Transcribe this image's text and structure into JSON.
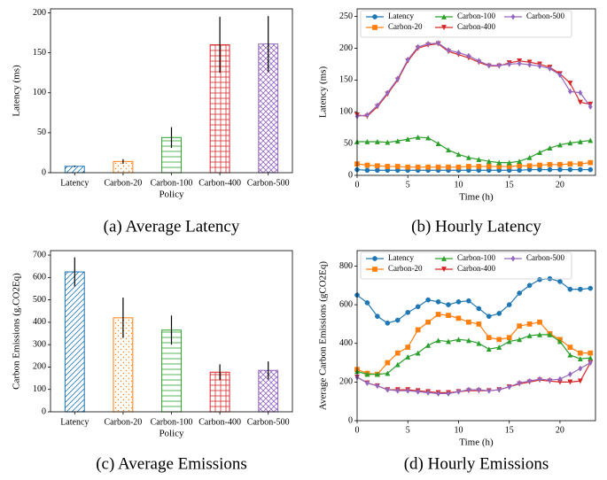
{
  "chart_data": [
    {
      "type": "bar",
      "caption": "(a) Average Latency",
      "xlabel": "Policy",
      "ylabel": "Latency (ms)",
      "categories": [
        "Latency",
        "Carbon-20",
        "Carbon-100",
        "Carbon-400",
        "Carbon-500"
      ],
      "values": [
        8,
        14,
        44,
        160,
        161
      ],
      "errors": [
        1,
        3,
        13,
        35,
        35
      ],
      "colors": [
        "#1f77b4",
        "#ff7f0e",
        "#2ca02c",
        "#d62728",
        "#9467bd"
      ],
      "hatches": [
        "/",
        ".",
        "-",
        "+",
        "x"
      ],
      "ylim": [
        0,
        205
      ],
      "yticks": [
        0,
        50,
        100,
        150,
        200
      ]
    },
    {
      "type": "line",
      "caption": "(b) Hourly Latency",
      "xlabel": "Time (h)",
      "ylabel": "Latency (ms)",
      "x": [
        0,
        1,
        2,
        3,
        4,
        5,
        6,
        7,
        8,
        9,
        10,
        11,
        12,
        13,
        14,
        15,
        16,
        17,
        18,
        19,
        20,
        21,
        22,
        23
      ],
      "series": [
        {
          "name": "Latency",
          "color": "#1f77b4",
          "marker": "o",
          "values": [
            9,
            8,
            8,
            8,
            8,
            8,
            8,
            8,
            8,
            8,
            8,
            8,
            8,
            8,
            8,
            8,
            8,
            9,
            9,
            9,
            9,
            9,
            9,
            9
          ]
        },
        {
          "name": "Carbon-20",
          "color": "#ff7f0e",
          "marker": "s",
          "values": [
            18,
            16,
            15,
            14,
            14,
            13,
            13,
            13,
            13,
            13,
            13,
            14,
            14,
            14,
            14,
            14,
            15,
            15,
            16,
            17,
            17,
            18,
            18,
            20
          ]
        },
        {
          "name": "Carbon-100",
          "color": "#2ca02c",
          "marker": "^",
          "values": [
            53,
            53,
            53,
            52,
            54,
            57,
            60,
            59,
            50,
            40,
            33,
            28,
            25,
            22,
            20,
            20,
            22,
            28,
            36,
            43,
            48,
            51,
            53,
            55
          ]
        },
        {
          "name": "Carbon-400",
          "color": "#d62728",
          "marker": "v",
          "values": [
            95,
            93,
            108,
            128,
            150,
            180,
            200,
            205,
            207,
            195,
            190,
            185,
            178,
            172,
            172,
            177,
            180,
            178,
            175,
            170,
            160,
            145,
            115,
            112
          ]
        },
        {
          "name": "Carbon-500",
          "color": "#9467bd",
          "marker": "d",
          "values": [
            93,
            95,
            110,
            130,
            152,
            182,
            202,
            207,
            208,
            197,
            193,
            188,
            180,
            173,
            173,
            175,
            176,
            174,
            172,
            168,
            158,
            132,
            130,
            108
          ]
        }
      ],
      "xlim": [
        0,
        23.5
      ],
      "xticks": [
        0,
        5,
        10,
        15,
        20
      ],
      "ylim": [
        0,
        262
      ],
      "yticks": [
        0,
        50,
        100,
        150,
        200,
        250
      ]
    },
    {
      "type": "bar",
      "caption": "(c) Average Emissions",
      "xlabel": "Policy",
      "ylabel": "Carbon Emissions (g.CO2Eq)",
      "categories": [
        "Latency",
        "Carbon-20",
        "Carbon-100",
        "Carbon-400",
        "Carbon-500"
      ],
      "values": [
        625,
        420,
        365,
        177,
        185
      ],
      "errors": [
        65,
        90,
        65,
        35,
        40
      ],
      "colors": [
        "#1f77b4",
        "#ff7f0e",
        "#2ca02c",
        "#d62728",
        "#9467bd"
      ],
      "hatches": [
        "/",
        ".",
        "-",
        "+",
        "x"
      ],
      "ylim": [
        0,
        720
      ],
      "yticks": [
        0,
        100,
        200,
        300,
        400,
        500,
        600,
        700
      ]
    },
    {
      "type": "line",
      "caption": "(d) Hourly Emissions",
      "xlabel": "Time (h)",
      "ylabel": "Average Carbon Emissions (gCO2Eq)",
      "x": [
        0,
        1,
        2,
        3,
        4,
        5,
        6,
        7,
        8,
        9,
        10,
        11,
        12,
        13,
        14,
        15,
        16,
        17,
        18,
        19,
        20,
        21,
        22,
        23
      ],
      "series": [
        {
          "name": "Latency",
          "color": "#1f77b4",
          "marker": "o",
          "values": [
            650,
            610,
            540,
            505,
            520,
            560,
            590,
            625,
            615,
            600,
            615,
            620,
            580,
            540,
            555,
            600,
            660,
            700,
            730,
            735,
            720,
            680,
            680,
            685
          ]
        },
        {
          "name": "Carbon-20",
          "color": "#ff7f0e",
          "marker": "s",
          "values": [
            265,
            245,
            240,
            300,
            350,
            380,
            470,
            510,
            550,
            545,
            530,
            510,
            500,
            430,
            420,
            430,
            490,
            500,
            510,
            450,
            420,
            380,
            350,
            350
          ]
        },
        {
          "name": "Carbon-100",
          "color": "#2ca02c",
          "marker": "^",
          "values": [
            255,
            240,
            240,
            245,
            290,
            330,
            350,
            390,
            415,
            410,
            420,
            415,
            400,
            370,
            380,
            410,
            420,
            440,
            445,
            445,
            410,
            340,
            320,
            325
          ]
        },
        {
          "name": "Carbon-400",
          "color": "#d62728",
          "marker": "v",
          "values": [
            225,
            195,
            180,
            160,
            160,
            160,
            155,
            150,
            145,
            145,
            150,
            155,
            155,
            155,
            160,
            175,
            190,
            200,
            210,
            205,
            200,
            200,
            205,
            300
          ]
        },
        {
          "name": "Carbon-500",
          "color": "#9467bd",
          "marker": "d",
          "values": [
            225,
            195,
            180,
            160,
            155,
            155,
            150,
            145,
            140,
            140,
            150,
            160,
            160,
            155,
            160,
            175,
            195,
            205,
            215,
            210,
            215,
            240,
            270,
            300
          ]
        }
      ],
      "xlim": [
        0,
        23.5
      ],
      "xticks": [
        0,
        5,
        10,
        15,
        20
      ],
      "ylim": [
        0,
        880
      ],
      "yticks": [
        0,
        200,
        400,
        600,
        800
      ]
    }
  ]
}
